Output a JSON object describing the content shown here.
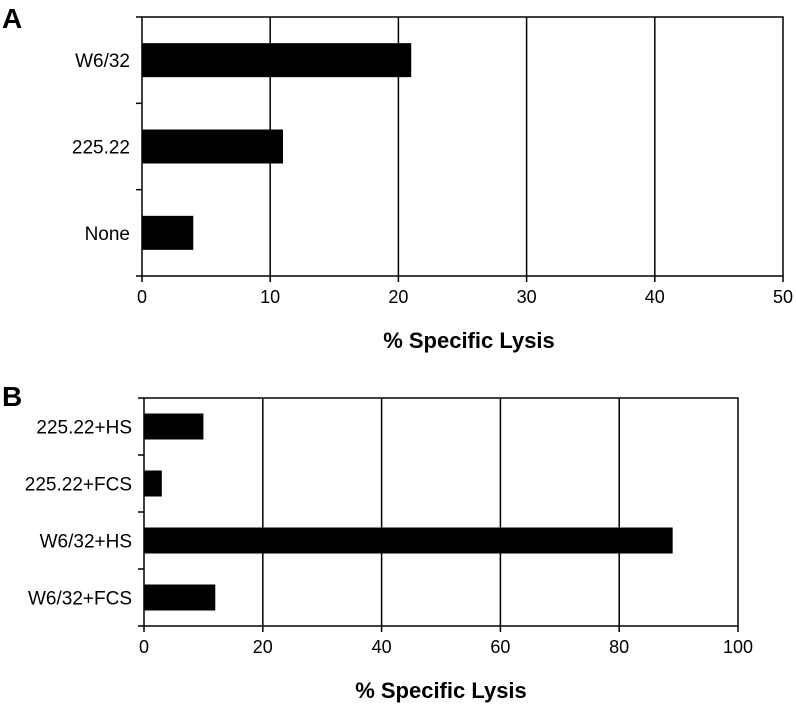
{
  "chart_data": [
    {
      "type": "bar",
      "orientation": "horizontal",
      "panel_label": "A",
      "categories": [
        "W6/32",
        "225.22",
        "None"
      ],
      "values": [
        21,
        11,
        4
      ],
      "xlabel": "% Specific Lysis",
      "ylabel": "",
      "xlim": [
        0,
        50
      ],
      "xticks": [
        "0",
        "10",
        "20",
        "30",
        "40",
        "50"
      ],
      "grid": "vertical",
      "bar_color": "#000000"
    },
    {
      "type": "bar",
      "orientation": "horizontal",
      "panel_label": "B",
      "categories": [
        "225.22+HS",
        "225.22+FCS",
        "W6/32+HS",
        "W6/32+FCS"
      ],
      "values": [
        10,
        3,
        89,
        12
      ],
      "xlabel": "% Specific Lysis",
      "ylabel": "",
      "xlim": [
        0,
        100
      ],
      "xticks": [
        "0",
        "20",
        "40",
        "60",
        "80",
        "100"
      ],
      "grid": "vertical",
      "bar_color": "#000000"
    }
  ]
}
